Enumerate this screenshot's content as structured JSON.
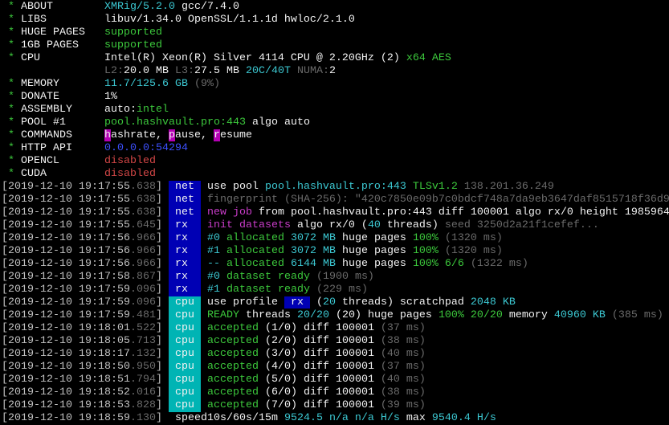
{
  "colors": {
    "net_tag": "#0000b4",
    "rx_tag": "#0000b4",
    "cpu_tag": "#00b4b4",
    "green": "#3cc83c",
    "cyan": "#3cc8d2",
    "magenta": "#c83cc8",
    "red": "#d24646",
    "blue": "#3c50ff",
    "gray": "#6a6a6a"
  },
  "header": [
    {
      "label": "ABOUT",
      "value": [
        [
          "XMRig/5.2.0",
          "cy"
        ],
        [
          " gcc/7.4.0",
          "w"
        ]
      ]
    },
    {
      "label": "LIBS",
      "value": [
        [
          "libuv/1.34.0 OpenSSL/1.1.1d hwloc/2.1.0",
          "w"
        ]
      ]
    },
    {
      "label": "HUGE PAGES",
      "value": [
        [
          "supported",
          "g"
        ]
      ]
    },
    {
      "label": "1GB PAGES",
      "value": [
        [
          "supported",
          "g"
        ]
      ]
    },
    {
      "label": "CPU",
      "value": [
        [
          "Intel(R) Xeon(R) Silver 4114 CPU @ 2.20GHz (2)",
          "w"
        ],
        [
          " x64 AES",
          "g"
        ]
      ]
    },
    {
      "label": "",
      "value": [
        [
          "L2:",
          "k"
        ],
        [
          "20.0 MB",
          "w"
        ],
        [
          " L3:",
          "k"
        ],
        [
          "27.5 MB",
          "w"
        ],
        [
          " 20C/40T",
          "cy"
        ],
        [
          " NUMA:",
          "k"
        ],
        [
          "2",
          "w"
        ]
      ]
    },
    {
      "label": "MEMORY",
      "value": [
        [
          "11.7/125.6 GB",
          "cy"
        ],
        [
          " (9%)",
          "k"
        ]
      ]
    },
    {
      "label": "DONATE",
      "value": [
        [
          "1%",
          "w"
        ]
      ]
    },
    {
      "label": "ASSEMBLY",
      "value": [
        [
          "auto:",
          "w"
        ],
        [
          "intel",
          "g"
        ]
      ]
    },
    {
      "label": "POOL #1",
      "value": [
        [
          "pool.hashvault.pro:443",
          "g"
        ],
        [
          " algo auto",
          "w"
        ]
      ]
    },
    {
      "label": "COMMANDS",
      "value": [
        [
          "h",
          "hm"
        ],
        [
          "ashrate, ",
          "w"
        ],
        [
          "p",
          "hm"
        ],
        [
          "ause, ",
          "w"
        ],
        [
          "r",
          "hm"
        ],
        [
          "esume",
          "w"
        ]
      ]
    },
    {
      "label": "HTTP API",
      "value": [
        [
          "0.0.0.0:54294",
          "b"
        ]
      ]
    },
    {
      "label": "OPENCL",
      "value": [
        [
          "disabled",
          "r"
        ]
      ]
    },
    {
      "label": "CUDA",
      "value": [
        [
          "disabled",
          "r"
        ]
      ]
    }
  ],
  "log": [
    {
      "time": "2019-12-10 19:17:55",
      "ms": ".638",
      "tag": "net",
      "msg": [
        [
          "use pool ",
          "w"
        ],
        [
          "pool.hashvault.pro:443",
          "cy"
        ],
        [
          " TLSv1.2",
          "g"
        ],
        [
          " 138.201.36.249",
          "k"
        ]
      ]
    },
    {
      "time": "2019-12-10 19:17:55",
      "ms": ".638",
      "tag": "net",
      "msg": [
        [
          "fingerprint (SHA-256): \"420c7850e09b7c0bdcf748a7da9eb3647daf8515718f36d9",
          "k"
        ]
      ]
    },
    {
      "time": "2019-12-10 19:17:55",
      "ms": ".638",
      "tag": "net",
      "msg": [
        [
          "new job",
          "m"
        ],
        [
          " from pool.hashvault.pro:443 diff 100001 algo rx/0 height 1985964",
          "w"
        ]
      ]
    },
    {
      "time": "2019-12-10 19:17:55",
      "ms": ".645",
      "tag": "rx",
      "msg": [
        [
          "init datasets",
          "m"
        ],
        [
          " algo rx/0 (",
          "w"
        ],
        [
          "40",
          "cy"
        ],
        [
          " threads)",
          "w"
        ],
        [
          " seed 3250d2a21f1cefef...",
          "k"
        ]
      ]
    },
    {
      "time": "2019-12-10 19:17:56",
      "ms": ".966",
      "tag": "rx",
      "msg": [
        [
          "#0",
          "cy"
        ],
        [
          " allocated",
          "g"
        ],
        [
          " 3072 MB",
          "cy"
        ],
        [
          " huge pages ",
          "w"
        ],
        [
          "100%",
          "g"
        ],
        [
          " (1320 ms)",
          "k"
        ]
      ]
    },
    {
      "time": "2019-12-10 19:17:56",
      "ms": ".966",
      "tag": "rx",
      "msg": [
        [
          "#1",
          "cy"
        ],
        [
          " allocated",
          "g"
        ],
        [
          " 3072 MB",
          "cy"
        ],
        [
          " huge pages ",
          "w"
        ],
        [
          "100%",
          "g"
        ],
        [
          " (1320 ms)",
          "k"
        ]
      ]
    },
    {
      "time": "2019-12-10 19:17:56",
      "ms": ".966",
      "tag": "rx",
      "msg": [
        [
          "--",
          "cy"
        ],
        [
          " allocated",
          "g"
        ],
        [
          " 6144 MB",
          "cy"
        ],
        [
          " huge pages ",
          "w"
        ],
        [
          "100% 6/6",
          "g"
        ],
        [
          " (1322 ms)",
          "k"
        ]
      ]
    },
    {
      "time": "2019-12-10 19:17:58",
      "ms": ".867",
      "tag": "rx",
      "msg": [
        [
          "#0",
          "cy"
        ],
        [
          " dataset ready",
          "g"
        ],
        [
          " (1900 ms)",
          "k"
        ]
      ]
    },
    {
      "time": "2019-12-10 19:17:59",
      "ms": ".096",
      "tag": "rx",
      "msg": [
        [
          "#1",
          "cy"
        ],
        [
          " dataset ready",
          "g"
        ],
        [
          " (229 ms)",
          "k"
        ]
      ]
    },
    {
      "time": "2019-12-10 19:17:59",
      "ms": ".096",
      "tag": "cpu",
      "msg": [
        [
          "use profile ",
          "w"
        ],
        [
          " rx ",
          "tx"
        ],
        [
          " (",
          "w"
        ],
        [
          "20",
          "cy"
        ],
        [
          " threads) scratchpad ",
          "w"
        ],
        [
          "2048 KB",
          "cy"
        ]
      ]
    },
    {
      "time": "2019-12-10 19:17:59",
      "ms": ".481",
      "tag": "cpu",
      "msg": [
        [
          "READY",
          "g"
        ],
        [
          " threads ",
          "w"
        ],
        [
          "20/20",
          "cy"
        ],
        [
          " (20) huge pages ",
          "w"
        ],
        [
          "100% 20/20",
          "g"
        ],
        [
          " memory ",
          "w"
        ],
        [
          "40960 KB",
          "cy"
        ],
        [
          " (385 ms)",
          "k"
        ]
      ]
    },
    {
      "time": "2019-12-10 19:18:01",
      "ms": ".522",
      "tag": "cpu",
      "msg": [
        [
          "accepted",
          "g"
        ],
        [
          " (1/0) diff 100001",
          "w"
        ],
        [
          " (37 ms)",
          "k"
        ]
      ]
    },
    {
      "time": "2019-12-10 19:18:05",
      "ms": ".713",
      "tag": "cpu",
      "msg": [
        [
          "accepted",
          "g"
        ],
        [
          " (2/0) diff 100001",
          "w"
        ],
        [
          " (38 ms)",
          "k"
        ]
      ]
    },
    {
      "time": "2019-12-10 19:18:17",
      "ms": ".132",
      "tag": "cpu",
      "msg": [
        [
          "accepted",
          "g"
        ],
        [
          " (3/0) diff 100001",
          "w"
        ],
        [
          " (40 ms)",
          "k"
        ]
      ]
    },
    {
      "time": "2019-12-10 19:18:50",
      "ms": ".950",
      "tag": "cpu",
      "msg": [
        [
          "accepted",
          "g"
        ],
        [
          " (4/0) diff 100001",
          "w"
        ],
        [
          " (37 ms)",
          "k"
        ]
      ]
    },
    {
      "time": "2019-12-10 19:18:51",
      "ms": ".794",
      "tag": "cpu",
      "msg": [
        [
          "accepted",
          "g"
        ],
        [
          " (5/0) diff 100001",
          "w"
        ],
        [
          " (40 ms)",
          "k"
        ]
      ]
    },
    {
      "time": "2019-12-10 19:18:52",
      "ms": ".016",
      "tag": "cpu",
      "msg": [
        [
          "accepted",
          "g"
        ],
        [
          " (6/0) diff 100001",
          "w"
        ],
        [
          " (38 ms)",
          "k"
        ]
      ]
    },
    {
      "time": "2019-12-10 19:18:53",
      "ms": ".828",
      "tag": "cpu",
      "msg": [
        [
          "accepted",
          "g"
        ],
        [
          " (7/0) diff 100001",
          "w"
        ],
        [
          " (39 ms)",
          "k"
        ]
      ]
    },
    {
      "time": "2019-12-10 19:18:59",
      "ms": ".130",
      "tag": "speed",
      "msg": [
        [
          "10s/60s/15m",
          "w"
        ],
        [
          " 9524.5 n/a n/a H/s",
          "cy"
        ],
        [
          " max ",
          "w"
        ],
        [
          "9540.4 H/s",
          "cy"
        ]
      ]
    }
  ]
}
